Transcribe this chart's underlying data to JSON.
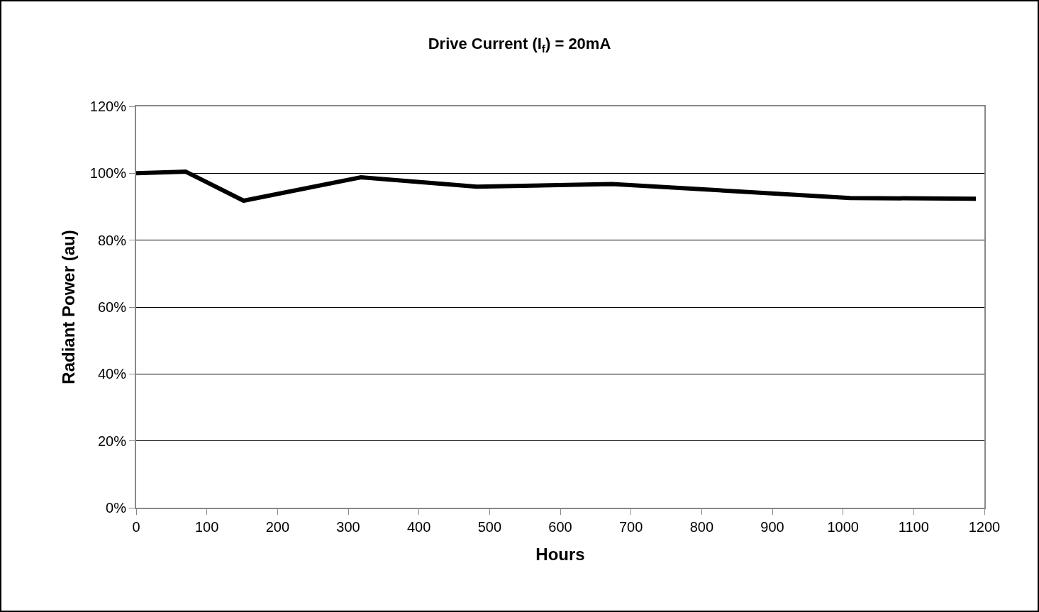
{
  "chart_data": {
    "type": "line",
    "title": "Drive Current (I$_{f}$) = 20mA",
    "xlabel": "Hours",
    "ylabel": "Radiant Power (au)",
    "x": [
      0,
      70,
      152,
      318,
      482,
      673,
      1010,
      1188
    ],
    "series": [
      {
        "color": "#000000",
        "values": [
          100,
          100.5,
          91.8,
          98.8,
          96,
          96.8,
          92.6,
          92.4
        ]
      }
    ],
    "xlim": [
      0,
      1200
    ],
    "xticks": [
      0,
      100,
      200,
      300,
      400,
      500,
      600,
      700,
      800,
      900,
      1000,
      1100,
      1200
    ],
    "ylim": [
      0,
      120
    ],
    "yticks": [
      {
        "value": 0,
        "label": "0%"
      },
      {
        "value": 20,
        "label": "20%"
      },
      {
        "value": 40,
        "label": "40%"
      },
      {
        "value": 60,
        "label": "60%"
      },
      {
        "value": 80,
        "label": "80%"
      },
      {
        "value": 100,
        "label": "100%"
      },
      {
        "value": 120,
        "label": "120%"
      }
    ],
    "grid": "y",
    "marker": "none",
    "line_style": "solid"
  }
}
